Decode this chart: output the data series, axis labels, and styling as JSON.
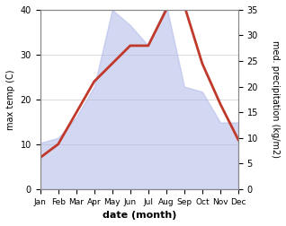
{
  "months": [
    "Jan",
    "Feb",
    "Mar",
    "Apr",
    "May",
    "Jun",
    "Jul",
    "Aug",
    "Sep",
    "Oct",
    "Nov",
    "Dec"
  ],
  "temp": [
    7,
    10,
    17,
    24,
    28,
    32,
    32,
    40,
    41,
    28,
    19,
    11
  ],
  "precip": [
    9,
    10,
    14,
    20,
    35,
    32,
    28,
    36,
    20,
    19,
    13,
    13
  ],
  "temp_color": "#c0392b",
  "precip_fill_color": "#b0b8e8",
  "precip_fill_alpha": 0.55,
  "left_ylabel": "max temp (C)",
  "right_ylabel": "med. precipitation (kg/m2)",
  "xlabel": "date (month)",
  "left_ylim": [
    0,
    40
  ],
  "right_ylim": [
    0,
    35
  ],
  "left_yticks": [
    0,
    10,
    20,
    30,
    40
  ],
  "right_yticks": [
    0,
    5,
    10,
    15,
    20,
    25,
    30,
    35
  ],
  "temp_linewidth": 2.0,
  "bg_color": "#ffffff",
  "grid_color": "#cccccc"
}
